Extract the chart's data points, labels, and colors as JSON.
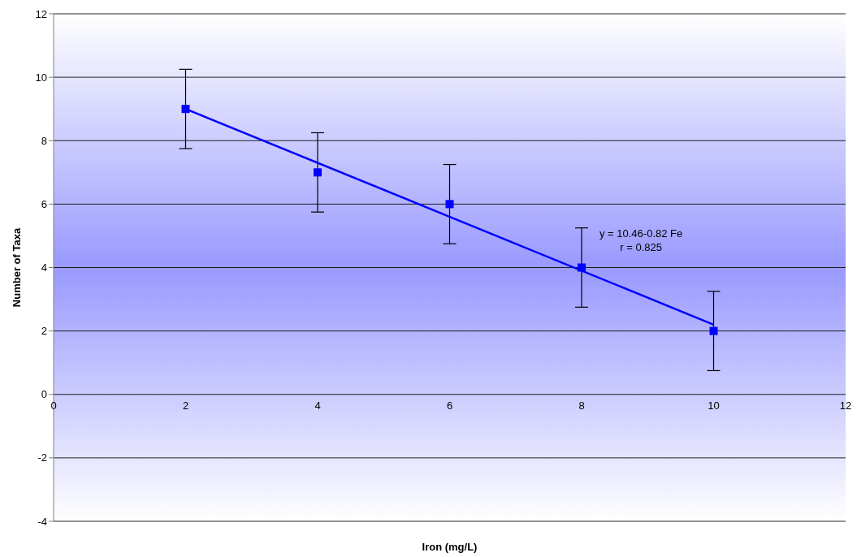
{
  "chart_data": {
    "type": "scatter",
    "xlabel": "Iron (mg/L)",
    "ylabel": "Number of Taxa",
    "xlim": [
      0,
      12
    ],
    "xticks": [
      0,
      2,
      4,
      6,
      8,
      10,
      12
    ],
    "ylim": [
      -4,
      12
    ],
    "yticks": [
      -4,
      -2,
      0,
      2,
      4,
      6,
      8,
      10,
      12
    ],
    "grid": "y",
    "series": [
      {
        "type": "scatter",
        "color": "#0000ff",
        "x": [
          2,
          4,
          6,
          8,
          10
        ],
        "values": [
          9,
          7,
          6,
          4,
          2
        ],
        "errors": [
          1.25,
          1.25,
          1.25,
          1.25,
          1.25
        ],
        "marker": "square"
      },
      {
        "type": "line",
        "color": "#0000ff",
        "x": [
          2,
          10
        ],
        "values": [
          9.0,
          2.2
        ],
        "line_style": "solid",
        "marker": "none"
      }
    ],
    "annotations": [
      "y = 10.46-0.82 Fe",
      "r = 0.825"
    ]
  }
}
